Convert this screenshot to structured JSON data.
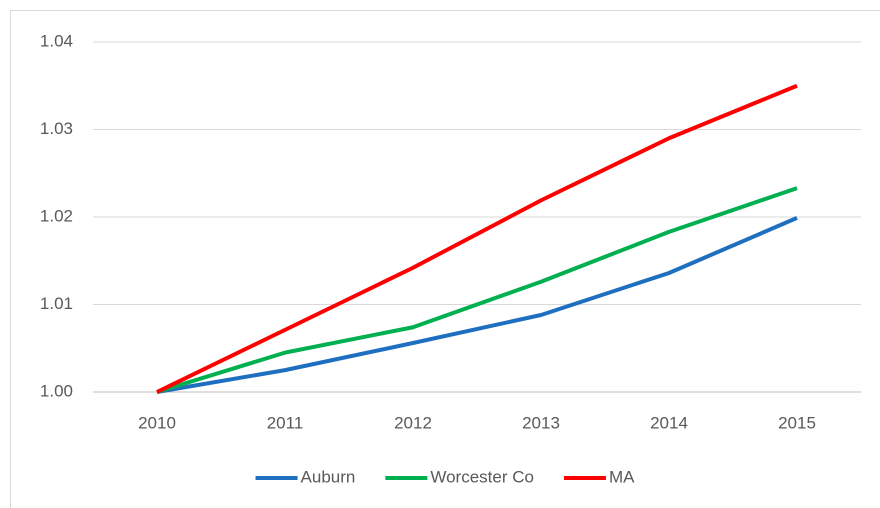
{
  "chart_data": {
    "type": "line",
    "categories": [
      "2010",
      "2011",
      "2012",
      "2013",
      "2014",
      "2015"
    ],
    "series": [
      {
        "name": "Auburn",
        "color": "#1f6fc0",
        "values": [
          1.0,
          1.0025,
          1.0056,
          1.0088,
          1.0136,
          1.0199
        ]
      },
      {
        "name": "Worcester Co",
        "color": "#00b050",
        "values": [
          1.0,
          1.0045,
          1.0074,
          1.0126,
          1.0183,
          1.0233
        ]
      },
      {
        "name": "MA",
        "color": "#ff0000",
        "values": [
          1.0,
          1.0071,
          1.0142,
          1.0219,
          1.029,
          1.035
        ]
      }
    ],
    "ylim": [
      1.0,
      1.04
    ],
    "yticks": [
      {
        "value": 1.0,
        "label": "1.00"
      },
      1.01,
      1.02,
      1.03,
      1.04
    ],
    "grid": true,
    "legend": "bottom"
  }
}
